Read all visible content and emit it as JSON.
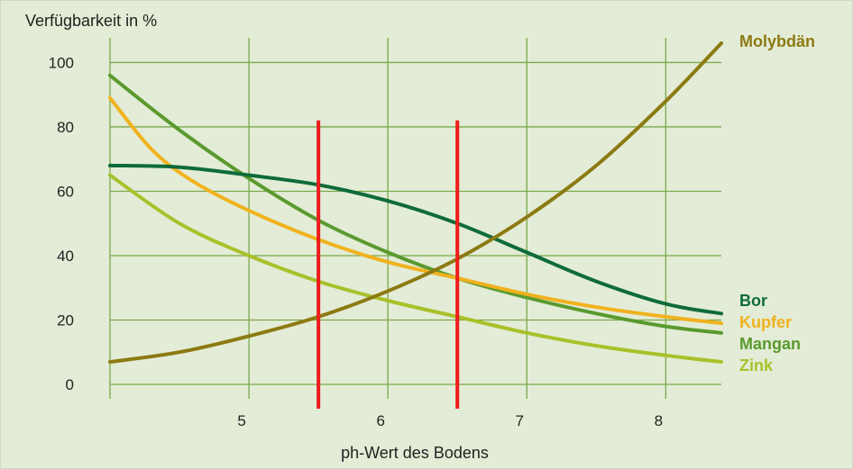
{
  "chart_data": {
    "type": "line",
    "title": "",
    "ylabel": "Verfügbarkeit in %",
    "xlabel": "ph-Wert des Bodens",
    "xlim": [
      4,
      8.4
    ],
    "ylim": [
      0,
      106
    ],
    "x_ticks": [
      "5",
      "6",
      "7",
      "8"
    ],
    "y_ticks": [
      "0",
      "20",
      "40",
      "60",
      "80",
      "100"
    ],
    "grid": true,
    "background": "#e3ecd6",
    "gridColor": "#7aa84a",
    "markers": {
      "color": "#ee1c1c",
      "x": [
        5.5,
        6.5
      ],
      "y_top": 82
    },
    "series": [
      {
        "name": "Molybdän",
        "color": "#8c7a12",
        "x": [
          4.0,
          4.5,
          5.0,
          5.5,
          6.0,
          6.5,
          7.0,
          7.5,
          8.0,
          8.4
        ],
        "values": [
          7,
          10,
          15,
          21,
          29,
          39,
          52,
          68,
          88,
          106
        ]
      },
      {
        "name": "Bor",
        "color": "#0e6b3a",
        "x": [
          4.0,
          4.5,
          5.0,
          5.5,
          6.0,
          6.5,
          7.0,
          7.5,
          8.0,
          8.4
        ],
        "values": [
          68,
          67.5,
          65,
          62,
          57,
          50,
          41,
          32,
          25,
          22
        ]
      },
      {
        "name": "Kupfer",
        "color": "#f0b21e",
        "x": [
          4.0,
          4.3,
          4.6,
          5.0,
          5.5,
          6.0,
          6.5,
          7.0,
          7.5,
          8.0,
          8.4
        ],
        "values": [
          89,
          73,
          63,
          54,
          45,
          38,
          33,
          28,
          24,
          21,
          19
        ]
      },
      {
        "name": "Mangan",
        "color": "#5a9a2e",
        "x": [
          4.0,
          4.5,
          5.0,
          5.5,
          6.0,
          6.5,
          7.0,
          7.5,
          8.0,
          8.4
        ],
        "values": [
          96,
          79,
          64,
          51,
          41,
          33,
          27,
          22,
          18,
          16
        ]
      },
      {
        "name": "Zink",
        "color": "#a9c12a",
        "x": [
          4.0,
          4.5,
          5.0,
          5.5,
          6.0,
          6.5,
          7.0,
          7.5,
          8.0,
          8.4
        ],
        "values": [
          65,
          50,
          40,
          32,
          26,
          21,
          16,
          12,
          9,
          7
        ]
      }
    ]
  }
}
